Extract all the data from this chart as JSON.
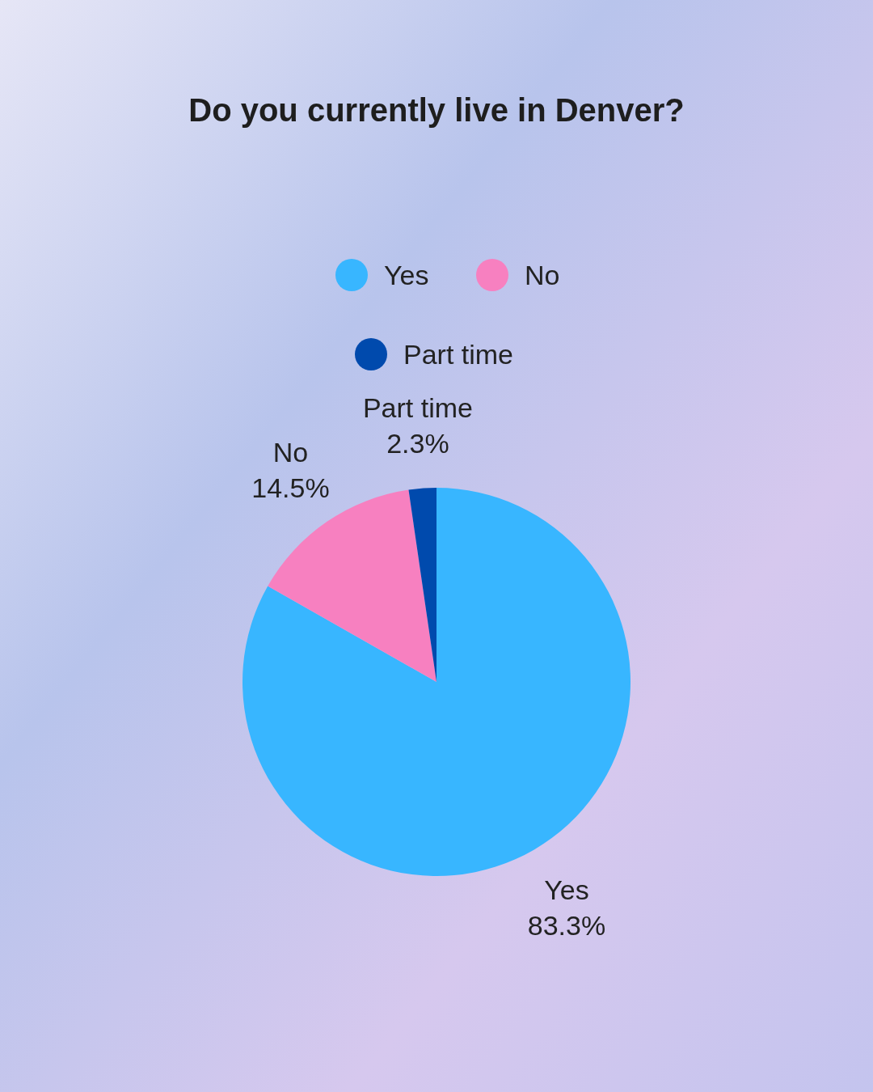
{
  "chart_data": {
    "type": "pie",
    "title": "Do you currently live in Denver?",
    "categories": [
      "Yes",
      "No",
      "Part time"
    ],
    "values": [
      83.3,
      14.5,
      2.3
    ],
    "value_labels": [
      "83.3%",
      "14.5%",
      "2.3%"
    ],
    "colors": [
      "#38b6ff",
      "#f780c0",
      "#004aad"
    ],
    "legend": "top"
  }
}
